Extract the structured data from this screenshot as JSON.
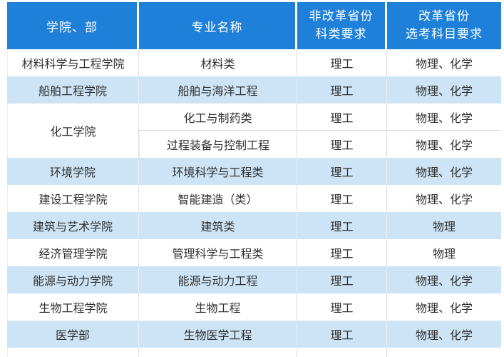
{
  "colors": {
    "header_bg": "#1e80d8",
    "header_text": "#ffffff",
    "row_bg": "#ffffff",
    "row_alt_bg": "#cde4f6",
    "body_text": "#2f2f2f",
    "sep_white": "#dcdcdc",
    "sep_blue": "#e7f1fa",
    "split_line": "#d6d6d6"
  },
  "table": {
    "header": {
      "columns": [
        {
          "label": "学院、部"
        },
        {
          "label": "专业名称"
        },
        {
          "line1": "非改革省份",
          "line2": "科类要求"
        },
        {
          "line1": "改革省份",
          "line2": "选考科目要求"
        }
      ]
    },
    "rows": [
      {
        "college": "材料科学与工程学院",
        "major": "材料类",
        "category": "理工",
        "subjects": "物理、化学"
      },
      {
        "college": "船舶工程学院",
        "major": "船舶与海洋工程",
        "category": "理工",
        "subjects": "物理、化学"
      },
      {
        "college": "化工学院",
        "major": "化工与制药类",
        "category": "理工",
        "subjects": "物理、化学"
      },
      {
        "major": "过程装备与控制工程",
        "category": "理工",
        "subjects": "物理、化学"
      },
      {
        "college": "环境学院",
        "major": "环境科学与工程类",
        "category": "理工",
        "subjects": "物理、化学"
      },
      {
        "college": "建设工程学院",
        "major": "智能建造（类）",
        "category": "理工",
        "subjects": "物理、化学"
      },
      {
        "college": "建筑与艺术学院",
        "major": "建筑类",
        "category": "理工",
        "subjects": "物理"
      },
      {
        "college": "经济管理学院",
        "major": "管理科学与工程类",
        "category": "理工",
        "subjects": "物理"
      },
      {
        "college": "能源与动力学院",
        "major": "能源与动力工程",
        "category": "理工",
        "subjects": "物理、化学"
      },
      {
        "college": "生物工程学院",
        "major": "生物工程",
        "category": "理工",
        "subjects": "物理、化学"
      },
      {
        "college": "医学部",
        "major": "生物医学工程",
        "category": "理工",
        "subjects": "物理、化学"
      }
    ]
  }
}
